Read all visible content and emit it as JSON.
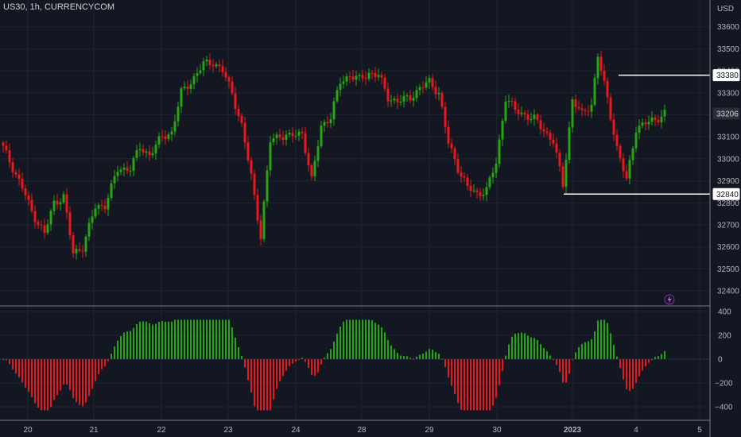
{
  "header": {
    "title": "US30, 1h, CURRENCYCOM",
    "currency": "USD"
  },
  "colors": {
    "background": "#131722",
    "up": "#26a613",
    "down": "#e8191b",
    "grid": "#1f2433",
    "axis_text": "#b2b5be",
    "line": "#ffffff"
  },
  "icons": {
    "lightning": "lightning-icon"
  },
  "chart_data": [
    {
      "type": "candlestick",
      "ylim": [
        32300,
        33700
      ],
      "y_ticks": [
        "33600",
        "33500",
        "33400",
        "33300",
        "33200",
        "33100",
        "33000",
        "32900",
        "32800",
        "32700",
        "32600",
        "32500",
        "32400"
      ],
      "x_ticks": [
        "20",
        "21",
        "22",
        "23",
        "24",
        "28",
        "29",
        "30",
        "2023",
        "4",
        "5"
      ],
      "price_badges": [
        "33380",
        "33206",
        "32840"
      ],
      "annotations": [
        {
          "label": "33380",
          "type": "horizontal-line",
          "value": 33380
        },
        {
          "label": "32840",
          "type": "horizontal-line",
          "value": 32840
        }
      ],
      "anchors": [
        [
          0,
          33050
        ],
        [
          3,
          32960
        ],
        [
          6,
          32870
        ],
        [
          9,
          32760
        ],
        [
          13,
          32660
        ],
        [
          16,
          32800
        ],
        [
          19,
          32830
        ],
        [
          22,
          32570
        ],
        [
          25,
          32600
        ],
        [
          29,
          32780
        ],
        [
          32,
          32790
        ],
        [
          36,
          32950
        ],
        [
          40,
          32960
        ],
        [
          43,
          33050
        ],
        [
          46,
          33020
        ],
        [
          50,
          33100
        ],
        [
          53,
          33120
        ],
        [
          56,
          33300
        ],
        [
          59,
          33350
        ],
        [
          63,
          33430
        ],
        [
          66,
          33440
        ],
        [
          69,
          33400
        ],
        [
          72,
          33300
        ],
        [
          75,
          33150
        ],
        [
          78,
          32920
        ],
        [
          81,
          32650
        ],
        [
          84,
          33080
        ],
        [
          87,
          33110
        ],
        [
          90,
          33100
        ],
        [
          94,
          33120
        ],
        [
          97,
          32900
        ],
        [
          100,
          33150
        ],
        [
          103,
          33190
        ],
        [
          106,
          33350
        ],
        [
          109,
          33380
        ],
        [
          112,
          33360
        ],
        [
          115,
          33390
        ],
        [
          118,
          33380
        ],
        [
          121,
          33280
        ],
        [
          124,
          33260
        ],
        [
          128,
          33280
        ],
        [
          131,
          33320
        ],
        [
          134,
          33350
        ],
        [
          137,
          33300
        ],
        [
          140,
          33070
        ],
        [
          143,
          32960
        ],
        [
          146,
          32870
        ],
        [
          149,
          32840
        ],
        [
          152,
          32860
        ],
        [
          155,
          32980
        ],
        [
          158,
          33280
        ],
        [
          161,
          33220
        ],
        [
          164,
          33200
        ],
        [
          167,
          33180
        ],
        [
          170,
          33130
        ],
        [
          173,
          33080
        ],
        [
          176,
          32880
        ],
        [
          179,
          33270
        ],
        [
          182,
          33200
        ],
        [
          185,
          33250
        ],
        [
          187,
          33470
        ],
        [
          190,
          33270
        ],
        [
          193,
          33050
        ],
        [
          196,
          32900
        ],
        [
          199,
          33140
        ],
        [
          202,
          33160
        ],
        [
          205,
          33180
        ],
        [
          208,
          33206
        ]
      ]
    },
    {
      "type": "histogram",
      "ylim": [
        -480,
        460
      ],
      "y_ticks": [
        "400",
        "200",
        "0",
        "−200",
        "−400"
      ]
    }
  ]
}
